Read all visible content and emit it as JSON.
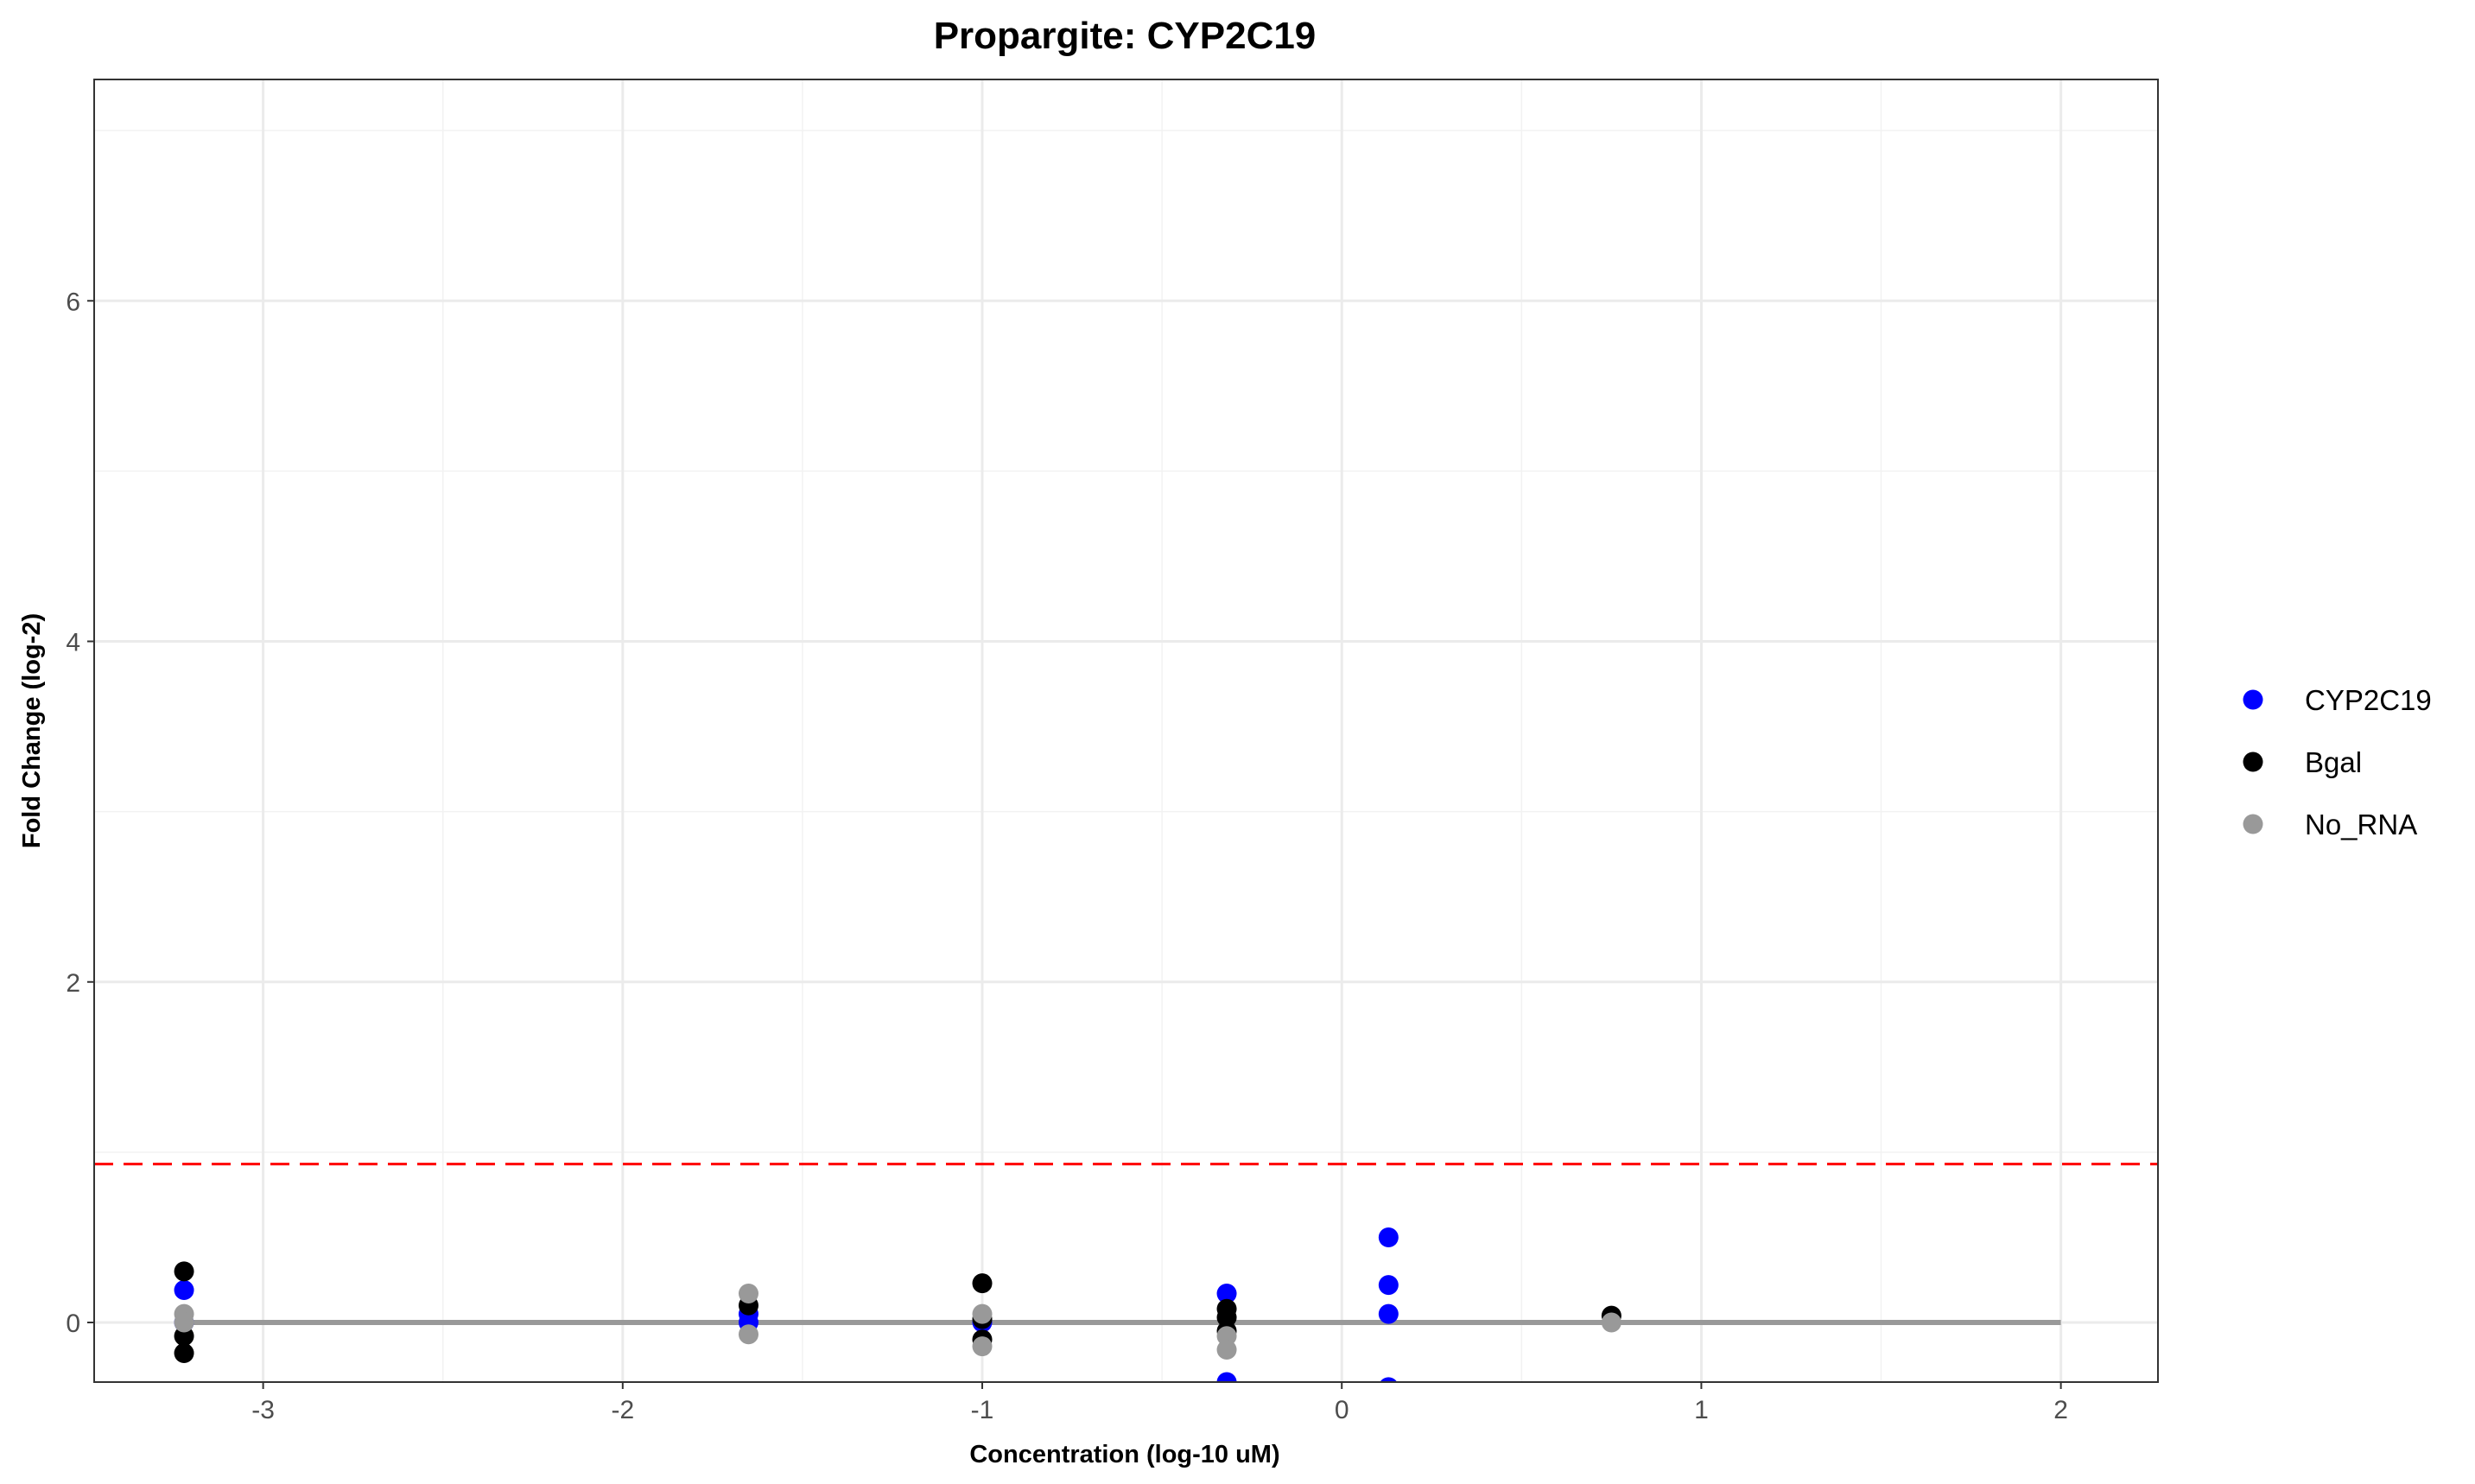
{
  "chart_data": {
    "type": "scatter",
    "title": "Propargite: CYP2C19",
    "xlabel": "Concentration (log-10 uM)",
    "ylabel": "Fold Change (log-2)",
    "xlim": [
      -3.47,
      2.27
    ],
    "ylim": [
      -0.35,
      7.3
    ],
    "x_ticks": [
      -3,
      -2,
      -1,
      0,
      1,
      2
    ],
    "y_ticks": [
      0,
      2,
      4,
      6
    ],
    "x_tick_labels": [
      "-3",
      "-2",
      "-1",
      "0",
      "1",
      "2"
    ],
    "y_tick_labels": [
      "0",
      "2",
      "4",
      "6"
    ],
    "grid": true,
    "legend_position": "right",
    "threshold_line": {
      "y": 0.93,
      "color": "#ff0000",
      "style": "dashed"
    },
    "baseline": {
      "x": [
        -3.22,
        2.0
      ],
      "y": 0,
      "color": "#999999"
    },
    "series": [
      {
        "name": "CYP2C19",
        "color": "#0000ff",
        "points": [
          [
            -3.22,
            0.19
          ],
          [
            -3.22,
            0.0
          ],
          [
            -1.65,
            0.05
          ],
          [
            -1.65,
            0.0
          ],
          [
            -1.0,
            0.0
          ],
          [
            -0.32,
            0.17
          ],
          [
            -0.32,
            -0.35
          ],
          [
            0.13,
            0.5
          ],
          [
            0.13,
            0.22
          ],
          [
            0.13,
            0.05
          ],
          [
            0.13,
            -0.38
          ]
        ]
      },
      {
        "name": "Bgal",
        "color": "#000000",
        "points": [
          [
            -3.22,
            0.3
          ],
          [
            -3.22,
            -0.08
          ],
          [
            -3.22,
            -0.18
          ],
          [
            -1.65,
            0.1
          ],
          [
            -1.0,
            0.23
          ],
          [
            -1.0,
            0.02
          ],
          [
            -1.0,
            -0.1
          ],
          [
            -0.32,
            0.08
          ],
          [
            -0.32,
            0.03
          ],
          [
            -0.32,
            -0.05
          ],
          [
            0.75,
            0.04
          ]
        ]
      },
      {
        "name": "No_RNA",
        "color": "#999999",
        "points": [
          [
            -3.22,
            0.05
          ],
          [
            -3.22,
            0.0
          ],
          [
            -1.65,
            0.17
          ],
          [
            -1.65,
            -0.07
          ],
          [
            -1.0,
            0.05
          ],
          [
            -1.0,
            -0.14
          ],
          [
            -0.32,
            -0.08
          ],
          [
            -0.32,
            -0.16
          ],
          [
            0.75,
            0.0
          ]
        ]
      }
    ]
  }
}
